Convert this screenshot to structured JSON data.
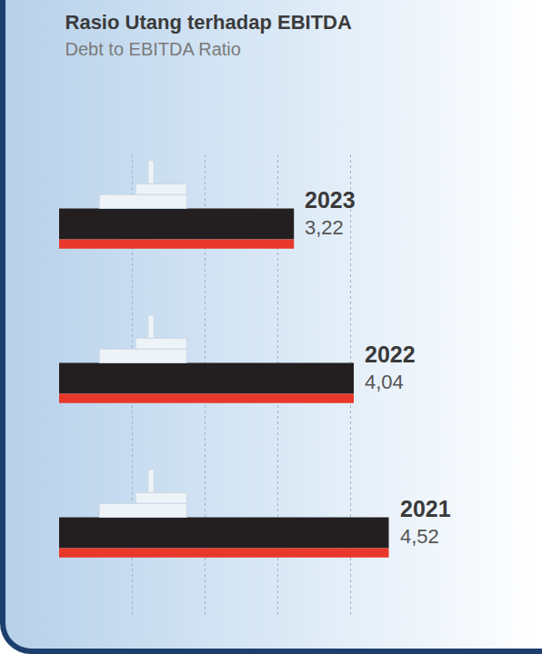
{
  "chart_data": {
    "type": "bar",
    "title": "Rasio Utang terhadap EBITDA",
    "subtitle": "Debt to EBITDA Ratio",
    "orientation": "horizontal",
    "categories": [
      "2023",
      "2022",
      "2021"
    ],
    "values": [
      3.22,
      4.04,
      4.52
    ],
    "value_labels": [
      "3,22",
      "4,04",
      "4,52"
    ],
    "data_labels": true,
    "color": "#231f20",
    "xlim": [
      0,
      5
    ],
    "xticks": [
      0,
      1,
      2,
      3,
      4,
      5
    ],
    "grid": true,
    "tick_labels": false
  }
}
